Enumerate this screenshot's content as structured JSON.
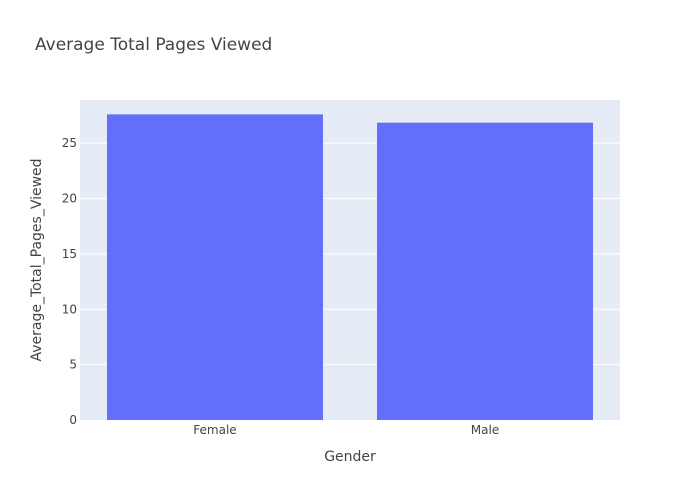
{
  "chart_data": {
    "type": "bar",
    "title": "Average Total Pages Viewed",
    "xlabel": "Gender",
    "ylabel": "Average_Total_Pages_Viewed",
    "categories": [
      "Female",
      "Male"
    ],
    "values": [
      27.6,
      26.85
    ],
    "ylim": [
      0,
      28.9
    ],
    "yticks": [
      0,
      5,
      10,
      15,
      20,
      25
    ],
    "grid": true,
    "legend": "none"
  },
  "colors": {
    "bar": "#636efa",
    "plot_background": "#e5ecf6",
    "gridline": "#ffffff",
    "text": "#444444"
  }
}
